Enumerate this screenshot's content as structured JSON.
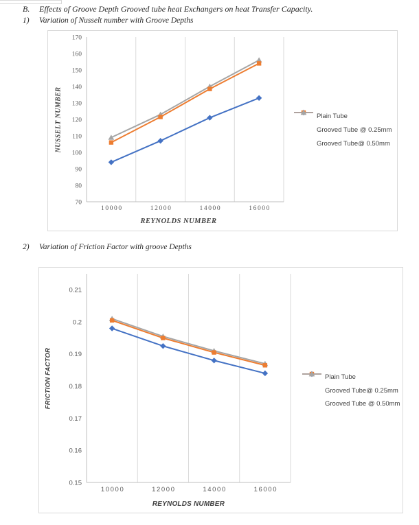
{
  "page": {
    "section_label": "B.",
    "section_title": "Effects of Groove Depth Grooved tube heat Exchangers on heat Transfer Capacity.",
    "item1_label": "1)",
    "item1_title": "Variation of Nusselt number with Groove Depths",
    "item2_label": "2)",
    "item2_title": "Variation of Friction Factor with groove Depths"
  },
  "colors": {
    "plain_tube": "#4472C4",
    "grooved_025mm": "#ED7D31",
    "grooved_050mm": "#A5A5A5",
    "gridline": "#D9D9D9",
    "axis_line": "#BFBFBF",
    "chart_border": "#D9D9D9",
    "tick_text": "#595959"
  },
  "chart_data": [
    {
      "type": "line",
      "title": "",
      "xlabel": "REYNOLDS NUMBER",
      "ylabel": "NUSSELT NUMBER",
      "categories": [
        "10000",
        "12000",
        "14000",
        "16000"
      ],
      "x_values": [
        10000,
        12000,
        14000,
        16000
      ],
      "ylim": [
        70,
        170
      ],
      "yticks": {
        "values": [
          70,
          80,
          90,
          100,
          110,
          120,
          130,
          140,
          150,
          160,
          170
        ],
        "labels": [
          "70",
          "80",
          "90",
          "100",
          "110",
          "120",
          "130",
          "140",
          "150",
          "160",
          "170"
        ]
      },
      "grid": "vertical",
      "legend_position": "right",
      "series": [
        {
          "name": "Plain Tube",
          "marker": "diamond",
          "color": "#4472C4",
          "values": [
            94,
            107,
            121,
            133
          ]
        },
        {
          "name": "Grooved Tube @ 0.25mm",
          "marker": "square",
          "color": "#ED7D31",
          "values": [
            106,
            121.5,
            138.5,
            154
          ]
        },
        {
          "name": "Grooved Tube@ 0.50mm",
          "marker": "triangle",
          "color": "#A5A5A5",
          "values": [
            109,
            123,
            140,
            156
          ]
        }
      ]
    },
    {
      "type": "line",
      "title": "",
      "xlabel": "REYNOLDS NUMBER",
      "ylabel": "FRICTION FACTOR",
      "categories": [
        "10000",
        "12000",
        "14000",
        "16000"
      ],
      "x_values": [
        10000,
        12000,
        14000,
        16000
      ],
      "ylim": [
        0.15,
        0.215
      ],
      "yticks": {
        "values": [
          0.15,
          0.16,
          0.17,
          0.18,
          0.19,
          0.2,
          0.21
        ],
        "labels": [
          "0.15",
          "0.16",
          "0.17",
          "0.18",
          "0.19",
          "0.2",
          "0.21"
        ]
      },
      "grid": "vertical",
      "legend_position": "right",
      "series": [
        {
          "name": "Plain Tube",
          "marker": "diamond",
          "color": "#4472C4",
          "values": [
            0.198,
            0.1925,
            0.188,
            0.184
          ]
        },
        {
          "name": "Grooved Tube@ 0.25mm",
          "marker": "square",
          "color": "#ED7D31",
          "values": [
            0.2005,
            0.195,
            0.1905,
            0.1865
          ]
        },
        {
          "name": "Grooved Tube @ 0.50mm",
          "marker": "triangle",
          "color": "#A5A5A5",
          "values": [
            0.201,
            0.1955,
            0.191,
            0.187
          ]
        }
      ]
    }
  ]
}
